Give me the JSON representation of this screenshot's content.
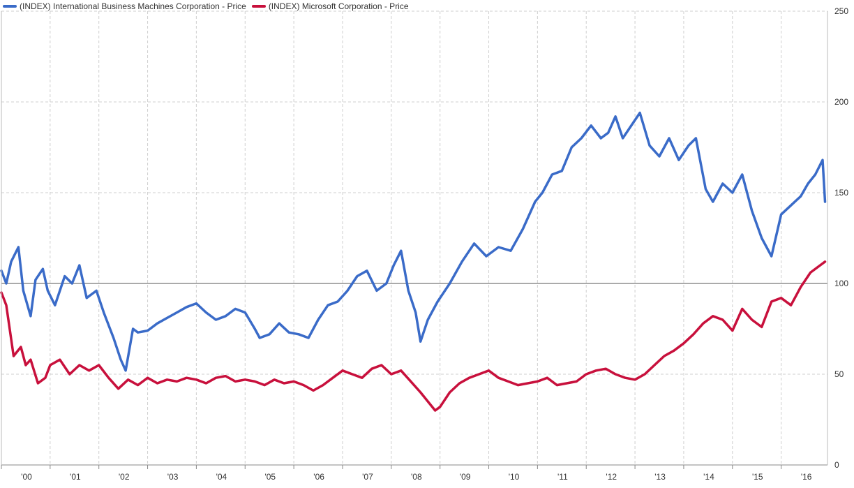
{
  "chart_data": {
    "type": "line",
    "title": "",
    "xlabel": "",
    "ylabel": "",
    "ylim": [
      0,
      250
    ],
    "xlim": [
      2000,
      2016.95
    ],
    "y_ticks": [
      "0",
      "50",
      "100",
      "150",
      "200",
      "250"
    ],
    "y_tick_values": [
      0,
      50,
      100,
      150,
      200,
      250
    ],
    "x_ticks": [
      "'00",
      "'01",
      "'02",
      "'03",
      "'04",
      "'05",
      "'06",
      "'07",
      "'08",
      "'09",
      "'10",
      "'11",
      "'12",
      "'13",
      "'14",
      "'15",
      "'16"
    ],
    "x_tick_values": [
      2000,
      2001,
      2002,
      2003,
      2004,
      2005,
      2006,
      2007,
      2008,
      2009,
      2010,
      2011,
      2012,
      2013,
      2014,
      2015,
      2016
    ],
    "reference_line": 100,
    "grid": true,
    "legend_position": "top-left",
    "series": [
      {
        "name": "(INDEX) International Business Machines Corporation - Price",
        "color": "#3a6bc8",
        "x": [
          2000.0,
          2000.1,
          2000.2,
          2000.35,
          2000.45,
          2000.6,
          2000.7,
          2000.85,
          2000.95,
          2001.1,
          2001.3,
          2001.45,
          2001.6,
          2001.75,
          2001.95,
          2002.1,
          2002.3,
          2002.45,
          2002.55,
          2002.7,
          2002.8,
          2003.0,
          2003.2,
          2003.4,
          2003.6,
          2003.8,
          2004.0,
          2004.2,
          2004.4,
          2004.6,
          2004.8,
          2005.0,
          2005.2,
          2005.3,
          2005.5,
          2005.7,
          2005.9,
          2006.1,
          2006.3,
          2006.5,
          2006.7,
          2006.9,
          2007.1,
          2007.3,
          2007.5,
          2007.7,
          2007.9,
          2008.05,
          2008.2,
          2008.35,
          2008.5,
          2008.6,
          2008.75,
          2008.95,
          2009.2,
          2009.45,
          2009.7,
          2009.95,
          2010.2,
          2010.45,
          2010.7,
          2010.95,
          2011.1,
          2011.3,
          2011.5,
          2011.7,
          2011.9,
          2012.1,
          2012.3,
          2012.45,
          2012.6,
          2012.75,
          2012.9,
          2013.1,
          2013.3,
          2013.5,
          2013.7,
          2013.9,
          2014.1,
          2014.25,
          2014.45,
          2014.6,
          2014.8,
          2015.0,
          2015.2,
          2015.4,
          2015.6,
          2015.8,
          2016.0,
          2016.2,
          2016.4,
          2016.55,
          2016.7,
          2016.85,
          2016.9
        ],
        "values": [
          107,
          100,
          112,
          120,
          96,
          82,
          102,
          108,
          96,
          88,
          104,
          100,
          110,
          92,
          96,
          84,
          70,
          58,
          52,
          75,
          73,
          74,
          78,
          81,
          84,
          87,
          89,
          84,
          80,
          82,
          86,
          84,
          75,
          70,
          72,
          78,
          73,
          72,
          70,
          80,
          88,
          90,
          96,
          104,
          107,
          96,
          100,
          110,
          118,
          96,
          84,
          68,
          80,
          90,
          100,
          112,
          122,
          115,
          120,
          118,
          130,
          145,
          150,
          160,
          162,
          175,
          180,
          187,
          180,
          183,
          192,
          180,
          186,
          194,
          176,
          170,
          180,
          168,
          176,
          180,
          152,
          145,
          155,
          150,
          160,
          140,
          125,
          115,
          138,
          143,
          148,
          155,
          160,
          168,
          145
        ]
      },
      {
        "name": "(INDEX) Microsoft Corporation - Price",
        "color": "#c8103c",
        "x": [
          2000.0,
          2000.1,
          2000.25,
          2000.4,
          2000.5,
          2000.6,
          2000.75,
          2000.9,
          2001.0,
          2001.2,
          2001.4,
          2001.6,
          2001.8,
          2002.0,
          2002.2,
          2002.4,
          2002.6,
          2002.8,
          2003.0,
          2003.2,
          2003.4,
          2003.6,
          2003.8,
          2004.0,
          2004.2,
          2004.4,
          2004.6,
          2004.8,
          2005.0,
          2005.2,
          2005.4,
          2005.6,
          2005.8,
          2006.0,
          2006.2,
          2006.4,
          2006.6,
          2006.8,
          2007.0,
          2007.2,
          2007.4,
          2007.6,
          2007.8,
          2008.0,
          2008.2,
          2008.4,
          2008.6,
          2008.75,
          2008.9,
          2009.0,
          2009.2,
          2009.4,
          2009.6,
          2009.8,
          2010.0,
          2010.2,
          2010.4,
          2010.6,
          2010.8,
          2011.0,
          2011.2,
          2011.4,
          2011.6,
          2011.8,
          2012.0,
          2012.2,
          2012.4,
          2012.6,
          2012.8,
          2013.0,
          2013.2,
          2013.4,
          2013.6,
          2013.8,
          2014.0,
          2014.2,
          2014.4,
          2014.6,
          2014.8,
          2015.0,
          2015.2,
          2015.4,
          2015.6,
          2015.8,
          2016.0,
          2016.2,
          2016.4,
          2016.6,
          2016.8,
          2016.9
        ],
        "values": [
          95,
          88,
          60,
          65,
          55,
          58,
          45,
          48,
          55,
          58,
          50,
          55,
          52,
          55,
          48,
          42,
          47,
          44,
          48,
          45,
          47,
          46,
          48,
          47,
          45,
          48,
          49,
          46,
          47,
          46,
          44,
          47,
          45,
          46,
          44,
          41,
          44,
          48,
          52,
          50,
          48,
          53,
          55,
          50,
          52,
          46,
          40,
          35,
          30,
          32,
          40,
          45,
          48,
          50,
          52,
          48,
          46,
          44,
          45,
          46,
          48,
          44,
          45,
          46,
          50,
          52,
          53,
          50,
          48,
          47,
          50,
          55,
          60,
          63,
          67,
          72,
          78,
          82,
          80,
          74,
          86,
          80,
          76,
          90,
          92,
          88,
          98,
          106,
          110,
          112
        ]
      }
    ]
  }
}
